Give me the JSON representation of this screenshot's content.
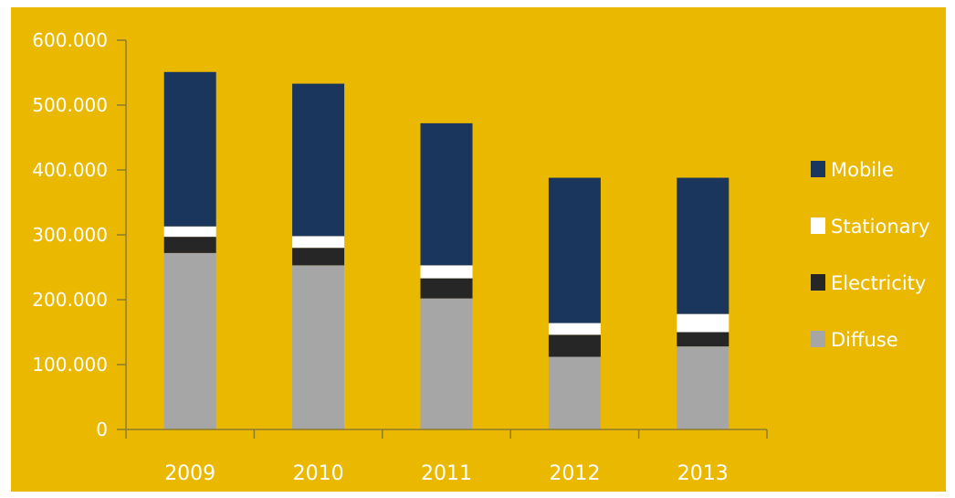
{
  "chart_data": {
    "type": "bar",
    "stacked": true,
    "categories": [
      "2009",
      "2010",
      "2011",
      "2012",
      "2013"
    ],
    "series": [
      {
        "name": "Diffuse",
        "values": [
          272000,
          253000,
          202000,
          112000,
          128000
        ],
        "color": "#a6a6a6"
      },
      {
        "name": "Electricity",
        "values": [
          25000,
          27000,
          31000,
          34000,
          22000
        ],
        "color": "#262626"
      },
      {
        "name": "Stationary",
        "values": [
          16000,
          18000,
          20000,
          18000,
          28000
        ],
        "color": "#ffffff"
      },
      {
        "name": "Mobile",
        "values": [
          238000,
          235000,
          219000,
          224000,
          210000
        ],
        "color": "#1b365d"
      }
    ],
    "ylim": [
      0,
      600000
    ],
    "y_ticks": [
      0,
      100000,
      200000,
      300000,
      400000,
      500000,
      600000
    ],
    "y_tick_labels": [
      "0",
      "100.000",
      "200.000",
      "300.000",
      "400.000",
      "500.000",
      "600.000"
    ],
    "legend_order": [
      "Mobile",
      "Stationary",
      "Electricity",
      "Diffuse"
    ],
    "legend_position": "right",
    "grid": false,
    "background_color": "#ebb800",
    "axis_color": "#8c7a2d"
  }
}
